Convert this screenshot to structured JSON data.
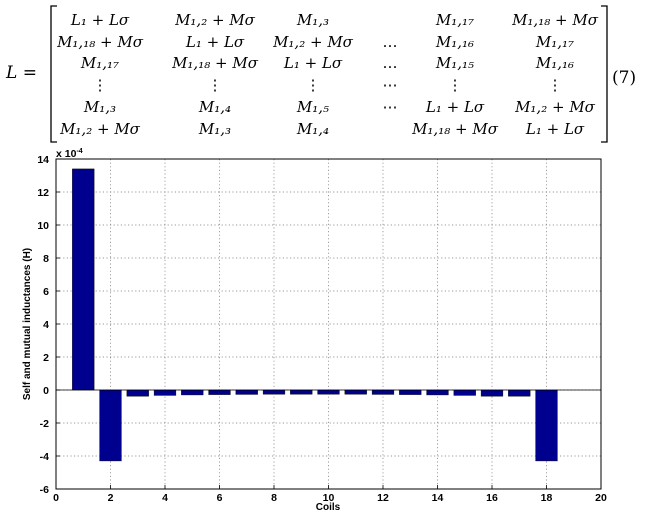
{
  "equation": {
    "lhs": "L =",
    "number": "(7)",
    "rows": [
      [
        "L₁ + Lσ",
        "M₁,₂ + Mσ",
        "M₁,₃",
        "",
        "M₁,₁₇",
        "M₁,₁₈ + Mσ"
      ],
      [
        "M₁,₁₈ + Mσ",
        "L₁ + Lσ",
        "M₁,₂ + Mσ",
        "…",
        "M₁,₁₆",
        "M₁,₁₇"
      ],
      [
        "M₁,₁₇",
        "M₁,₁₈ + Mσ",
        "L₁ + Lσ",
        "…",
        "M₁,₁₅",
        "M₁,₁₆"
      ],
      [
        "⋮",
        "⋮",
        "⋮",
        "⋯",
        "⋮",
        "⋮"
      ],
      [
        "M₁,₃",
        "M₁,₄",
        "M₁,₅",
        "⋯",
        "L₁ + Lσ",
        "M₁,₂ + Mσ"
      ],
      [
        "M₁,₂ + Mσ",
        "M₁,₃",
        "M₁,₄",
        "",
        "M₁,₁₈ + Mσ",
        "L₁ + Lσ"
      ]
    ]
  },
  "chart_data": {
    "type": "bar",
    "title": "",
    "xlabel": "Coils",
    "ylabel": "Self and mutual inductances (H)",
    "scale_exponent": "x 10",
    "scale_power": "-4",
    "xlim": [
      0,
      20
    ],
    "ylim": [
      -6,
      14
    ],
    "xticks": [
      0,
      2,
      4,
      6,
      8,
      10,
      12,
      14,
      16,
      18,
      20
    ],
    "yticks": [
      -6,
      -4,
      -2,
      0,
      2,
      4,
      6,
      8,
      10,
      12,
      14
    ],
    "grid": true,
    "bar_color": "#00008f",
    "x": [
      1,
      2,
      3,
      4,
      5,
      6,
      7,
      8,
      9,
      10,
      11,
      12,
      13,
      14,
      15,
      16,
      17,
      18
    ],
    "values": [
      13.4,
      -4.3,
      -0.38,
      -0.33,
      -0.3,
      -0.28,
      -0.27,
      -0.26,
      -0.26,
      -0.26,
      -0.26,
      -0.27,
      -0.28,
      -0.3,
      -0.33,
      -0.38,
      -0.38,
      -4.3
    ]
  }
}
